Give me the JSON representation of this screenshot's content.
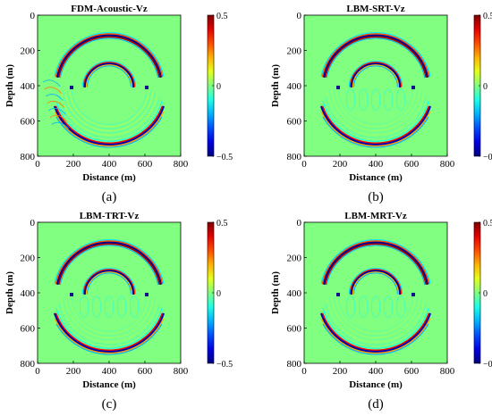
{
  "figure": {
    "panels": [
      {
        "id": "a",
        "title": "FDM-Acoustic-Vz",
        "caption": "(a)",
        "variant": "fdm"
      },
      {
        "id": "b",
        "title": "LBM-SRT-Vz",
        "caption": "(b)",
        "variant": "srt"
      },
      {
        "id": "c",
        "title": "LBM-TRT-Vz",
        "caption": "(c)",
        "variant": "trt"
      },
      {
        "id": "d",
        "title": "LBM-MRT-Vz",
        "caption": "(d)",
        "variant": "mrt"
      }
    ],
    "xlabel": "Distance (m)",
    "ylabel": "Depth (m)",
    "xticks": [
      "0",
      "200",
      "400",
      "600",
      "800"
    ],
    "yticks": [
      "0",
      "200",
      "400",
      "600",
      "800"
    ],
    "colorbar_ticks": [
      "0.5",
      "0",
      "−0.5"
    ]
  },
  "chart_data": [
    {
      "type": "heatmap",
      "title": "FDM-Acoustic-Vz",
      "xlabel": "Distance (m)",
      "ylabel": "Depth (m)",
      "xlim": [
        0,
        800
      ],
      "ylim": [
        800,
        0
      ],
      "clim": [
        -0.5,
        0.5
      ],
      "colormap": "jet"
    },
    {
      "type": "heatmap",
      "title": "LBM-SRT-Vz",
      "xlabel": "Distance (m)",
      "ylabel": "Depth (m)",
      "xlim": [
        0,
        800
      ],
      "ylim": [
        800,
        0
      ],
      "clim": [
        -0.5,
        0.5
      ],
      "colormap": "jet"
    },
    {
      "type": "heatmap",
      "title": "LBM-TRT-Vz",
      "xlabel": "Distance (m)",
      "ylabel": "Depth (m)",
      "xlim": [
        0,
        800
      ],
      "ylim": [
        800,
        0
      ],
      "clim": [
        -0.5,
        0.5
      ],
      "colormap": "jet"
    },
    {
      "type": "heatmap",
      "title": "LBM-MRT-Vz",
      "xlabel": "Distance (m)",
      "ylabel": "Depth (m)",
      "xlim": [
        0,
        800
      ],
      "ylim": [
        800,
        0
      ],
      "clim": [
        -0.5,
        0.5
      ],
      "colormap": "jet"
    }
  ],
  "wavefronts": {
    "upper_arc": {
      "cx": 400,
      "cy": 410,
      "r": 295
    },
    "inner_arc": {
      "cx": 400,
      "cy": 410,
      "r": 135
    },
    "lower_arc": {
      "cx": 400,
      "cy": 410,
      "r": 325
    },
    "source_points": [
      [
        190,
        410
      ],
      [
        610,
        410
      ]
    ]
  },
  "colors": {
    "background": "#80ff80"
  }
}
